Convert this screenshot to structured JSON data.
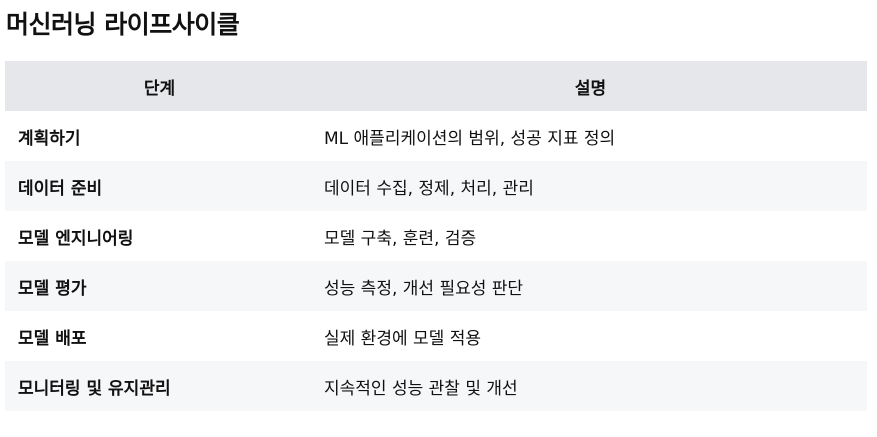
{
  "title": "머신러닝 라이프사이클",
  "table": {
    "headers": [
      "단계",
      "설명"
    ],
    "rows": [
      {
        "step": "계획하기",
        "description": "ML 애플리케이션의 범위, 성공 지표 정의"
      },
      {
        "step": "데이터 준비",
        "description": "데이터 수집, 정제, 처리, 관리"
      },
      {
        "step": "모델 엔지니어링",
        "description": "모델 구축, 훈련, 검증"
      },
      {
        "step": "모델 평가",
        "description": "성능 측정, 개선 필요성 판단"
      },
      {
        "step": "모델 배포",
        "description": "실제 환경에 모델 적용"
      },
      {
        "step": "모니터링 및 유지관리",
        "description": "지속적인 성능 관찰 및 개선"
      }
    ]
  }
}
